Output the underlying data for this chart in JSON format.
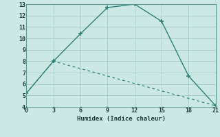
{
  "line1_x": [
    0,
    3,
    6,
    9,
    12,
    15,
    18,
    21
  ],
  "line1_y": [
    5.2,
    8.0,
    10.4,
    12.7,
    13.0,
    11.5,
    6.7,
    4.1
  ],
  "line2_x": [
    0,
    3,
    21
  ],
  "line2_y": [
    5.2,
    8.0,
    4.1
  ],
  "line_color": "#2e7f74",
  "bg_color": "#cce8e4",
  "grid_color": "#aacfcc",
  "xlabel": "Humidex (Indice chaleur)",
  "xlim": [
    0,
    21
  ],
  "ylim": [
    4,
    13
  ],
  "xticks": [
    0,
    3,
    6,
    9,
    12,
    15,
    18,
    21
  ],
  "yticks": [
    4,
    5,
    6,
    7,
    8,
    9,
    10,
    11,
    12,
    13
  ],
  "marker": "+"
}
